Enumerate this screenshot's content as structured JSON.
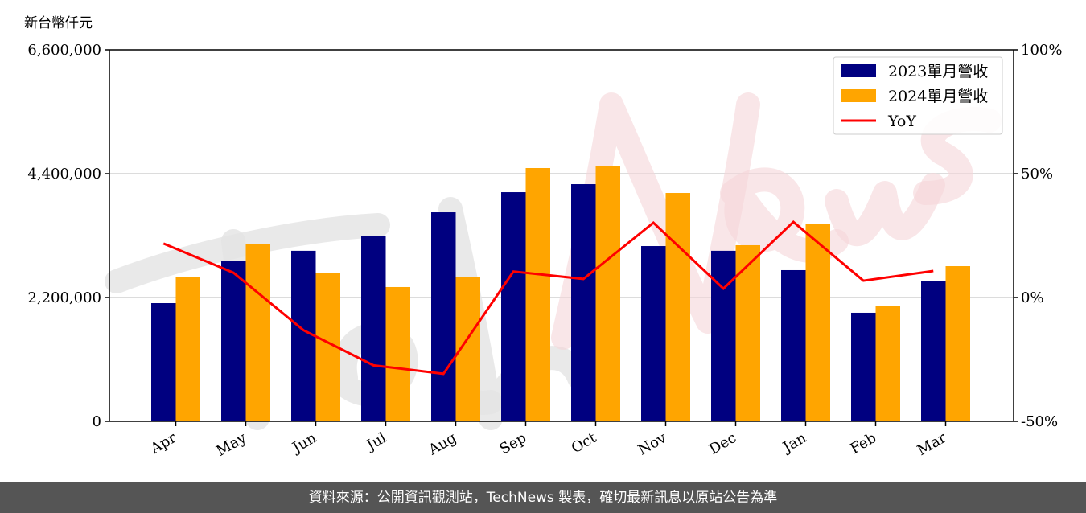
{
  "chart_data": {
    "type": "bar",
    "ylabel": "新台幣仟元",
    "categories": [
      "Apr",
      "May",
      "Jun",
      "Jul",
      "Aug",
      "Sep",
      "Oct",
      "Nov",
      "Dec",
      "Jan",
      "Feb",
      "Mar"
    ],
    "series": [
      {
        "name": "2023單月營收",
        "kind": "bar",
        "axis": "left",
        "color": "#000080",
        "values": [
          2100000,
          2857000,
          3030000,
          3286000,
          3714000,
          4071000,
          4214000,
          3114000,
          3030000,
          2686000,
          1929000,
          2486000
        ]
      },
      {
        "name": "2024單月營收",
        "kind": "bar",
        "axis": "left",
        "color": "#FFA500",
        "values": [
          2571000,
          3143000,
          2629000,
          2386000,
          2571000,
          4500000,
          4529000,
          4057000,
          3129000,
          3514000,
          2057000,
          2757000
        ]
      },
      {
        "name": "YoY",
        "kind": "line",
        "axis": "right",
        "color": "#FF0000",
        "values": [
          21.8,
          10.0,
          -13.2,
          -27.4,
          -30.8,
          10.5,
          7.5,
          30.2,
          3.6,
          30.5,
          6.8,
          10.7
        ]
      }
    ],
    "ylim": [
      0,
      6600000
    ],
    "yticks": [
      "0",
      "2,200,000",
      "4,400,000",
      "6,600,000"
    ],
    "y2lim": [
      -50,
      100
    ],
    "y2ticks": [
      "-50%",
      "0%",
      "50%",
      "100%"
    ],
    "grid": "horizontal",
    "legend": "top-right"
  },
  "watermark": "TechNews",
  "footer": "資料來源：公開資訊觀測站，TechNews 製表，確切最新訊息以原站公告為準"
}
